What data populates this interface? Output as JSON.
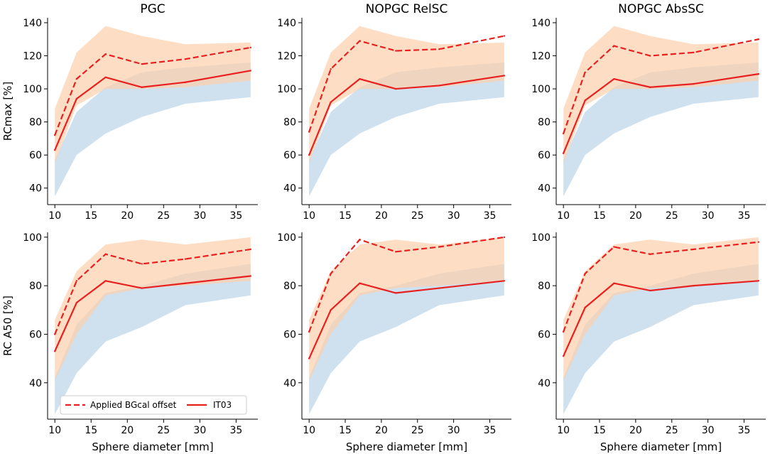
{
  "chart_data": {
    "type": "line",
    "xlabel": "Sphere diameter [mm]",
    "x": [
      10,
      13,
      17,
      22,
      28,
      37
    ],
    "xlim": [
      9,
      38
    ],
    "xticks": [
      10,
      15,
      20,
      25,
      30,
      35
    ],
    "legend": {
      "placement": "lower-left",
      "entries": [
        {
          "label": "Applied BGcal offset",
          "style": "dashed",
          "color": "#e8201f"
        },
        {
          "label": "IT03",
          "style": "solid",
          "color": "#e8201f"
        }
      ]
    },
    "colors": {
      "line": "#e8201f",
      "band_orange": "#fcd0ad",
      "band_blue": "#bfd6ea"
    },
    "rows": [
      {
        "ylabel": "RCmax [%]",
        "ylim": [
          30,
          143
        ],
        "yticks": [
          40,
          60,
          80,
          100,
          120,
          140
        ],
        "orange_band": {
          "upper": [
            88,
            122,
            138,
            132,
            127,
            128
          ],
          "lower": [
            55,
            90,
            100,
            100,
            101,
            105
          ]
        },
        "blue_band": {
          "upper": [
            57,
            86,
            101,
            110,
            113,
            116
          ],
          "lower": [
            35,
            60,
            73,
            83,
            91,
            95
          ]
        }
      },
      {
        "ylabel": "RC A50 [%]",
        "ylim": [
          25,
          102
        ],
        "yticks": [
          40,
          60,
          80,
          100
        ],
        "orange_band": {
          "upper": [
            66,
            86,
            97,
            99,
            97,
            100
          ],
          "lower": [
            41,
            60,
            76,
            79,
            80,
            82
          ]
        },
        "blue_band": {
          "upper": [
            42,
            64,
            77,
            80,
            85,
            89
          ],
          "lower": [
            27,
            44,
            57,
            63,
            72,
            76
          ]
        }
      }
    ],
    "charts": [
      {
        "row": 0,
        "col": 0,
        "title": "PGC",
        "series": [
          {
            "name": "Applied BGcal offset",
            "style": "dashed",
            "values": [
              72,
              106,
              121,
              115,
              118,
              125
            ]
          },
          {
            "name": "IT03",
            "style": "solid",
            "values": [
              63,
              94,
              107,
              101,
              104,
              111
            ]
          }
        ]
      },
      {
        "row": 0,
        "col": 1,
        "title": "NOPGC RelSC",
        "series": [
          {
            "name": "Applied BGcal offset",
            "style": "dashed",
            "values": [
              74,
              112,
              129,
              123,
              124,
              132
            ]
          },
          {
            "name": "IT03",
            "style": "solid",
            "values": [
              60,
              92,
              106,
              100,
              102,
              108
            ]
          }
        ]
      },
      {
        "row": 0,
        "col": 2,
        "title": "NOPGC AbsSC",
        "series": [
          {
            "name": "Applied BGcal offset",
            "style": "dashed",
            "values": [
              73,
              110,
              126,
              120,
              122,
              130
            ]
          },
          {
            "name": "IT03",
            "style": "solid",
            "values": [
              61,
              93,
              106,
              101,
              103,
              109
            ]
          }
        ]
      },
      {
        "row": 1,
        "col": 0,
        "title": "",
        "series": [
          {
            "name": "Applied BGcal offset",
            "style": "dashed",
            "values": [
              60,
              82,
              93,
              89,
              91,
              95
            ]
          },
          {
            "name": "IT03",
            "style": "solid",
            "values": [
              53,
              73,
              82,
              79,
              81,
              84
            ]
          }
        ]
      },
      {
        "row": 1,
        "col": 1,
        "title": "",
        "series": [
          {
            "name": "Applied BGcal offset",
            "style": "dashed",
            "values": [
              61,
              85,
              99,
              94,
              96,
              100
            ]
          },
          {
            "name": "IT03",
            "style": "solid",
            "values": [
              50,
              70,
              81,
              77,
              79,
              82
            ]
          }
        ]
      },
      {
        "row": 1,
        "col": 2,
        "title": "",
        "series": [
          {
            "name": "Applied BGcal offset",
            "style": "dashed",
            "values": [
              61,
              85,
              96,
              93,
              95,
              98
            ]
          },
          {
            "name": "IT03",
            "style": "solid",
            "values": [
              51,
              71,
              81,
              78,
              80,
              82
            ]
          }
        ]
      }
    ]
  }
}
